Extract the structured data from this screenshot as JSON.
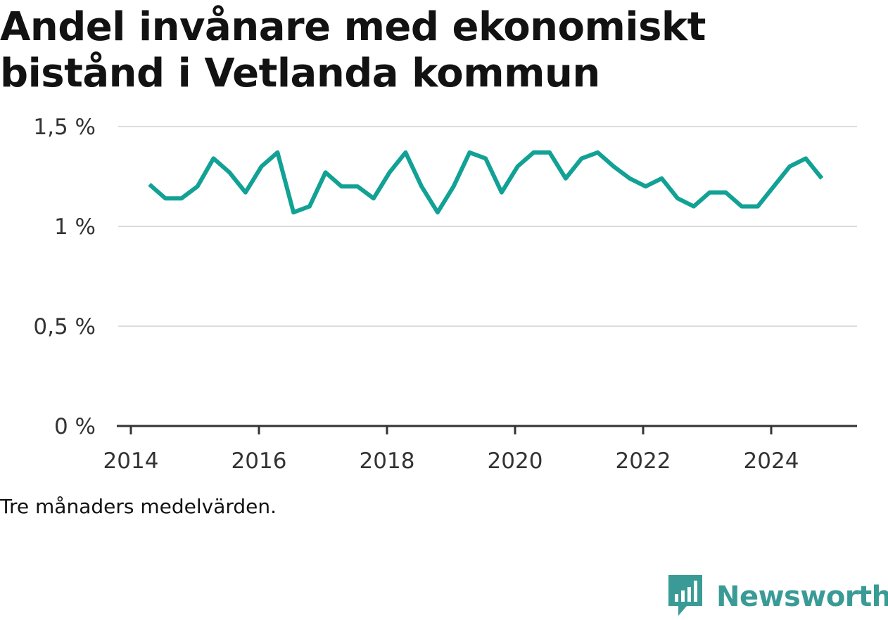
{
  "title": "Andel invånare med ekonomiskt bistånd i Vetlanda kommun",
  "note": "Tre månaders medelvärden.",
  "brand": {
    "name": "Newsworthy",
    "color": "#3a9b96",
    "icon": "bar-chart-icon"
  },
  "chart_data": {
    "type": "line",
    "title": "Andel invånare med ekonomiskt bistånd i Vetlanda kommun",
    "xlabel": "",
    "ylabel": "",
    "xlim": [
      2014.0,
      2025.3
    ],
    "ylim": [
      0,
      1.5
    ],
    "x_ticks": [
      {
        "value": 2014,
        "label": "2014"
      },
      {
        "value": 2016,
        "label": "2016"
      },
      {
        "value": 2018,
        "label": "2018"
      },
      {
        "value": 2020,
        "label": "2020"
      },
      {
        "value": 2022,
        "label": "2022"
      },
      {
        "value": 2024,
        "label": "2024"
      }
    ],
    "y_ticks": [
      {
        "value": 0,
        "label": "0 %"
      },
      {
        "value": 0.5,
        "label": "0,5 %"
      },
      {
        "value": 1,
        "label": "1 %"
      },
      {
        "value": 1.5,
        "label": "1,5 %"
      }
    ],
    "grid": true,
    "line_color": "#12a195",
    "series": [
      {
        "x": [
          2014.29,
          2014.54,
          2014.79,
          2015.04,
          2015.29,
          2015.54,
          2015.79,
          2016.04,
          2016.29,
          2016.54,
          2016.79,
          2017.04,
          2017.29,
          2017.54,
          2017.79,
          2018.04,
          2018.29,
          2018.54,
          2018.79,
          2019.04,
          2019.29,
          2019.54,
          2019.79,
          2020.04,
          2020.29,
          2020.54,
          2020.79,
          2021.04,
          2021.29,
          2021.54,
          2021.79,
          2022.04,
          2022.29,
          2022.54,
          2022.79,
          2023.04,
          2023.29,
          2023.54,
          2023.79,
          2024.04,
          2024.29,
          2024.54,
          2024.79
        ],
        "values": [
          1.21,
          1.14,
          1.14,
          1.2,
          1.34,
          1.27,
          1.17,
          1.3,
          1.37,
          1.07,
          1.1,
          1.27,
          1.2,
          1.2,
          1.14,
          1.27,
          1.37,
          1.2,
          1.07,
          1.2,
          1.37,
          1.34,
          1.17,
          1.3,
          1.37,
          1.37,
          1.24,
          1.34,
          1.37,
          1.3,
          1.24,
          1.2,
          1.24,
          1.14,
          1.1,
          1.17,
          1.17,
          1.1,
          1.1,
          1.2,
          1.3,
          1.34,
          1.24
        ]
      }
    ]
  }
}
